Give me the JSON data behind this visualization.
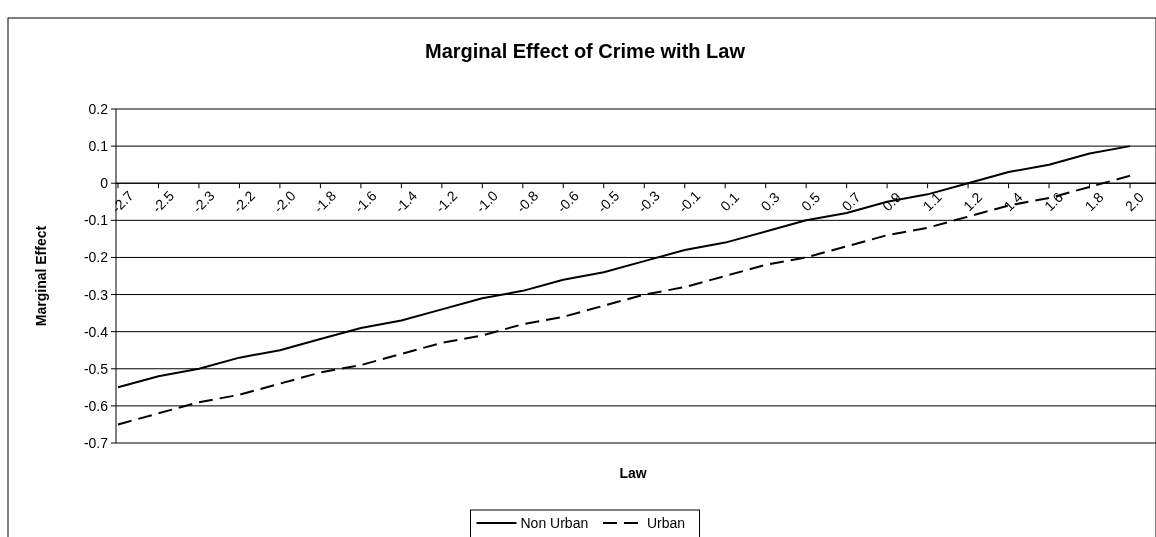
{
  "chart_data": {
    "type": "line",
    "title": "Marginal Effect of Crime with Law",
    "xlabel": "Law",
    "ylabel": "Marginal Effect",
    "categories": [
      "-2.7",
      "-2.5",
      "-2.3",
      "-2.2",
      "-2.0",
      "-1.8",
      "-1.6",
      "-1.4",
      "-1.2",
      "-1.0",
      "-0.8",
      "-0.6",
      "-0.5",
      "-0.3",
      "-0.1",
      "0.1",
      "0.3",
      "0.5",
      "0.7",
      "0.9",
      "1.1",
      "1.2",
      "1.4",
      "1.6",
      "1.8",
      "2.0"
    ],
    "series": [
      {
        "name": "Non Urban",
        "color": "#000000",
        "line_style": "solid",
        "values": [
          -0.55,
          -0.52,
          -0.5,
          -0.47,
          -0.45,
          -0.42,
          -0.39,
          -0.37,
          -0.34,
          -0.31,
          -0.29,
          -0.26,
          -0.24,
          -0.21,
          -0.18,
          -0.16,
          -0.13,
          -0.1,
          -0.08,
          -0.05,
          -0.03,
          0,
          0.03,
          0.05,
          0.08,
          0.1
        ]
      },
      {
        "name": "Urban",
        "color": "#000000",
        "line_style": "dashed",
        "values": [
          -0.65,
          -0.62,
          -0.59,
          -0.57,
          -0.54,
          -0.51,
          -0.49,
          -0.46,
          -0.43,
          -0.41,
          -0.38,
          -0.36,
          -0.33,
          -0.3,
          -0.28,
          -0.25,
          -0.22,
          -0.2,
          -0.17,
          -0.14,
          -0.12,
          -0.09,
          -0.06,
          -0.04,
          -0.01,
          0.02
        ]
      }
    ],
    "ylim": [
      -0.7,
      0.2
    ],
    "yticks": [
      -0.7,
      -0.6,
      -0.5,
      -0.4,
      -0.3,
      -0.2,
      -0.1,
      0,
      0.1,
      0.2
    ],
    "grid": "y",
    "legend": "bottom"
  }
}
